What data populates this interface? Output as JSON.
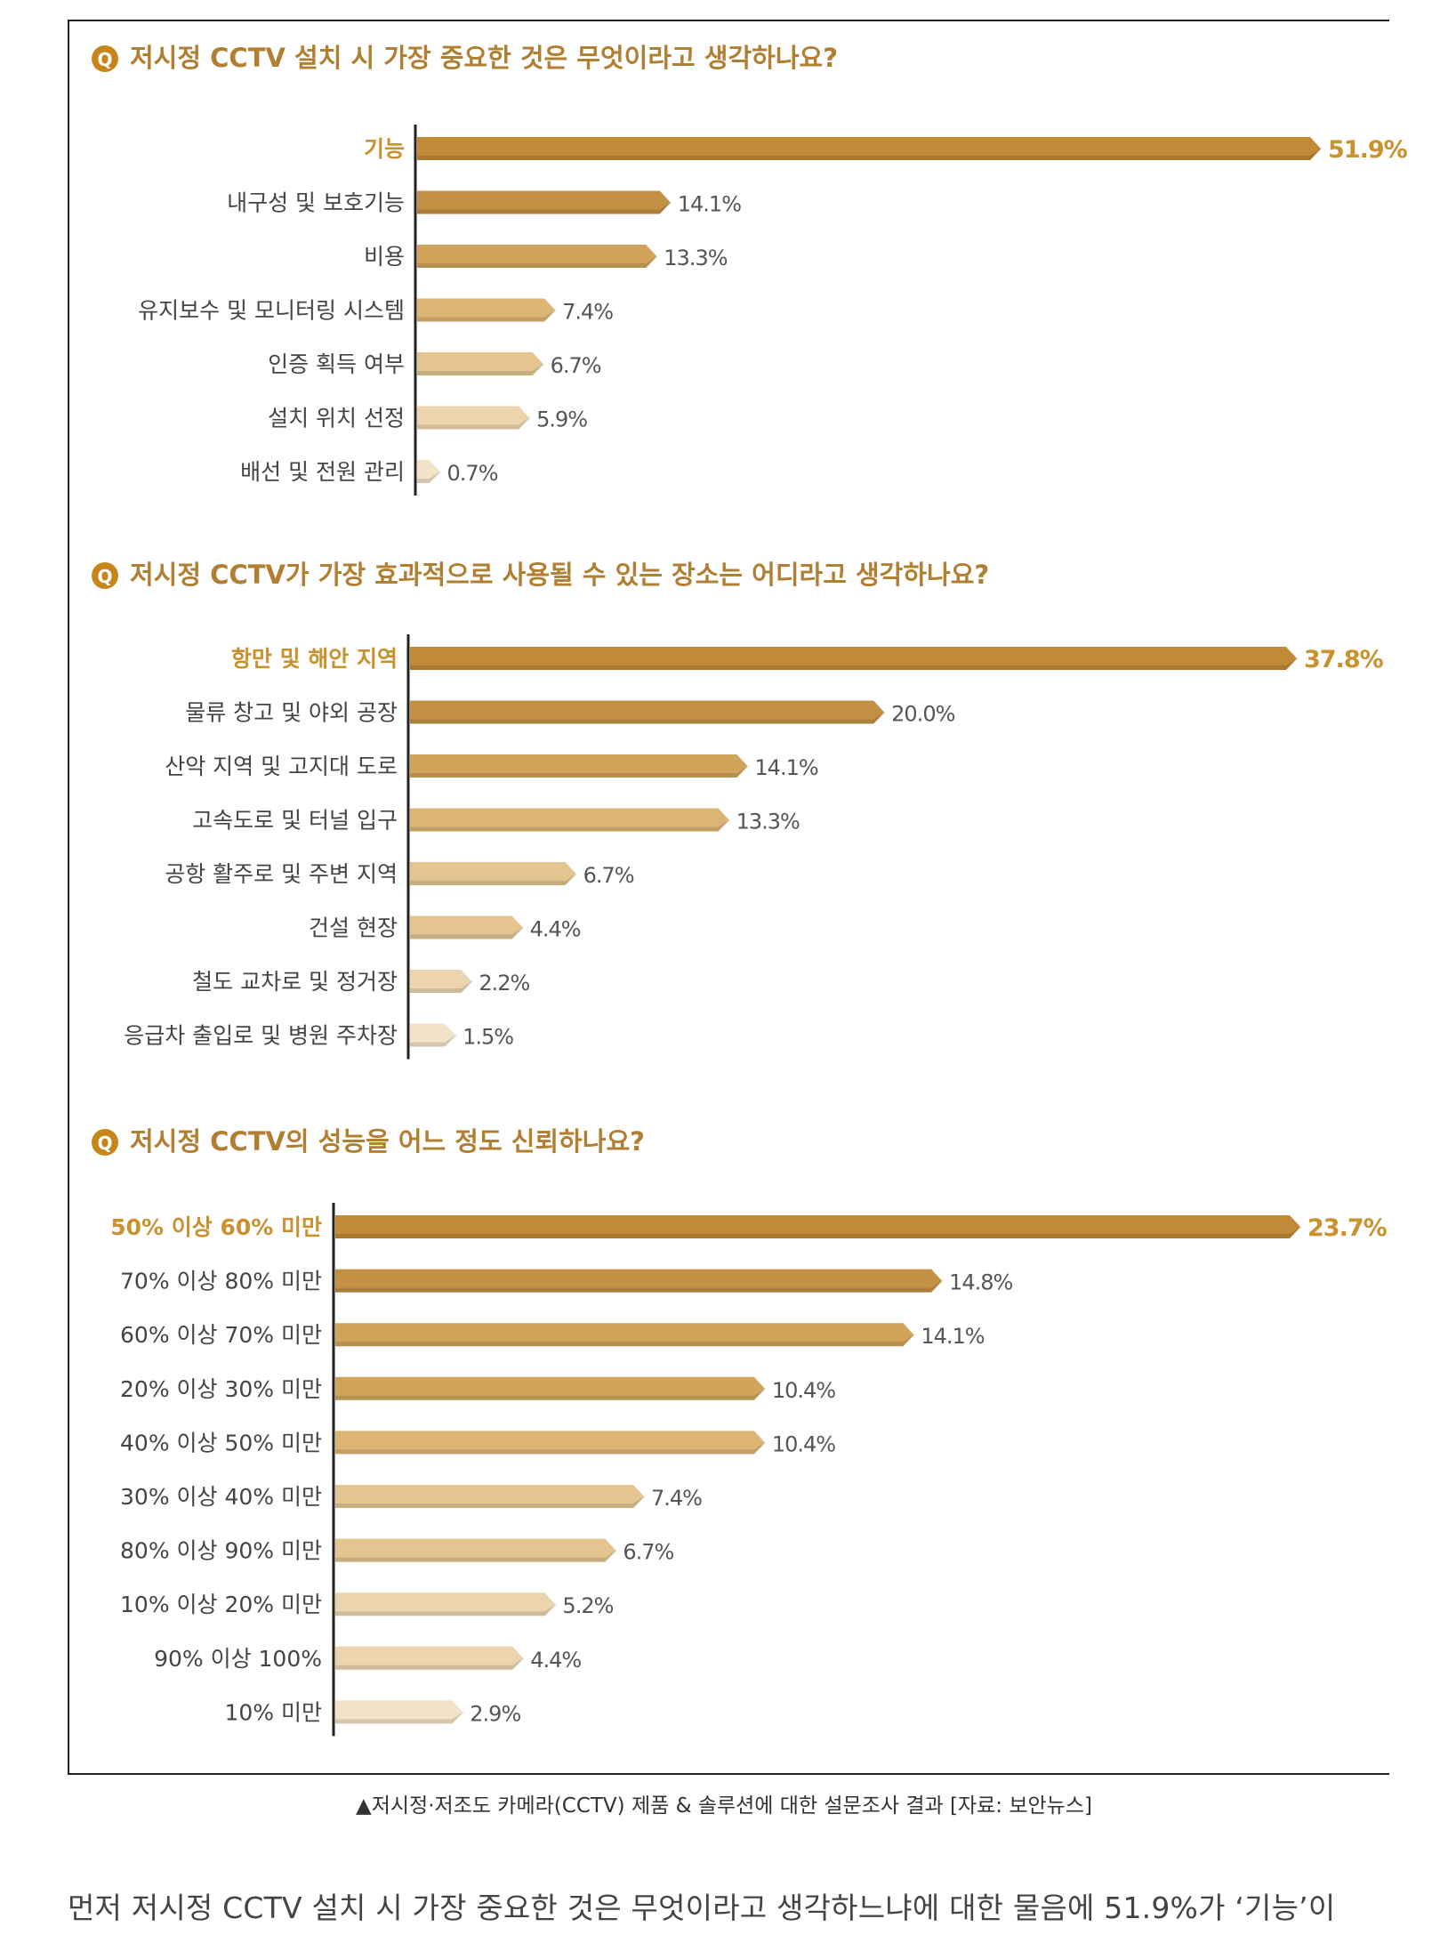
{
  "colors": {
    "highlight_bar": "#c08a36",
    "highlight_text": "#c8922e",
    "question_icon": "#c8861a",
    "question_text": "#b17f32",
    "label_text": "#444444",
    "shades": [
      "#c39144",
      "#d2a35a",
      "#dcb574",
      "#e4c590",
      "#ecd5ae",
      "#f2e2c7"
    ]
  },
  "icon": "q-circle-icon",
  "chart_data": [
    {
      "type": "bar",
      "orientation": "horizontal",
      "question_mark": "Q",
      "title": "저시정 CCTV 설치 시 가장 중요한 것은 무엇이라고 생각하나요?",
      "categories": [
        "기능",
        "내구성 및 보호기능",
        "비용",
        "유지보수 및 모니터링 시스템",
        "인증 획득 여부",
        "설치 위치 선정",
        "배선 및 전원 관리"
      ],
      "values": [
        51.9,
        14.1,
        13.3,
        7.4,
        6.7,
        5.9,
        0.7
      ],
      "value_labels": [
        "51.9%",
        "14.1%",
        "13.3%",
        "7.4%",
        "6.7%",
        "5.9%",
        "0.7%"
      ],
      "unit": "%",
      "highlight_index": 0
    },
    {
      "type": "bar",
      "orientation": "horizontal",
      "question_mark": "Q",
      "title": "저시정 CCTV가 가장 효과적으로 사용될 수 있는 장소는 어디라고 생각하나요?",
      "categories": [
        "항만 및 해안 지역",
        "물류 창고 및 야외 공장",
        "산악 지역 및 고지대 도로",
        "고속도로 및 터널 입구",
        "공항 활주로 및 주변 지역",
        "건설 현장",
        "철도 교차로 및 정거장",
        "응급차 출입로 및 병원 주차장"
      ],
      "values": [
        37.8,
        20.0,
        14.1,
        13.3,
        6.7,
        4.4,
        2.2,
        1.5
      ],
      "value_labels": [
        "37.8%",
        "20.0%",
        "14.1%",
        "13.3%",
        "6.7%",
        "4.4%",
        "2.2%",
        "1.5%"
      ],
      "unit": "%",
      "highlight_index": 0
    },
    {
      "type": "bar",
      "orientation": "horizontal",
      "question_mark": "Q",
      "title": "저시정 CCTV의 성능을 어느 정도 신뢰하나요?",
      "categories": [
        "50% 이상 60% 미만",
        "70% 이상 80% 미만",
        "60% 이상 70% 미만",
        "20% 이상 30% 미만",
        "40% 이상 50% 미만",
        "30% 이상 40% 미만",
        "80% 이상 90% 미만",
        "10% 이상 20% 미만",
        "90% 이상 100%",
        "10% 미만"
      ],
      "values": [
        23.7,
        14.8,
        14.1,
        10.4,
        10.4,
        7.4,
        6.7,
        5.2,
        4.4,
        2.9
      ],
      "value_labels": [
        "23.7%",
        "14.8%",
        "14.1%",
        "10.4%",
        "10.4%",
        "7.4%",
        "6.7%",
        "5.2%",
        "4.4%",
        "2.9%"
      ],
      "unit": "%",
      "highlight_index": 0
    }
  ],
  "caption": "▲저시정·저조도 카메라(CCTV) 제품 & 솔루션에 대한 설문조사 결과 [자료: 보안뉴스]",
  "body_text": "먼저 저시정 CCTV 설치 시 가장 중요한 것은 무엇이라고 생각하느냐에 대한 물음에 51.9%가 ‘기능’이"
}
